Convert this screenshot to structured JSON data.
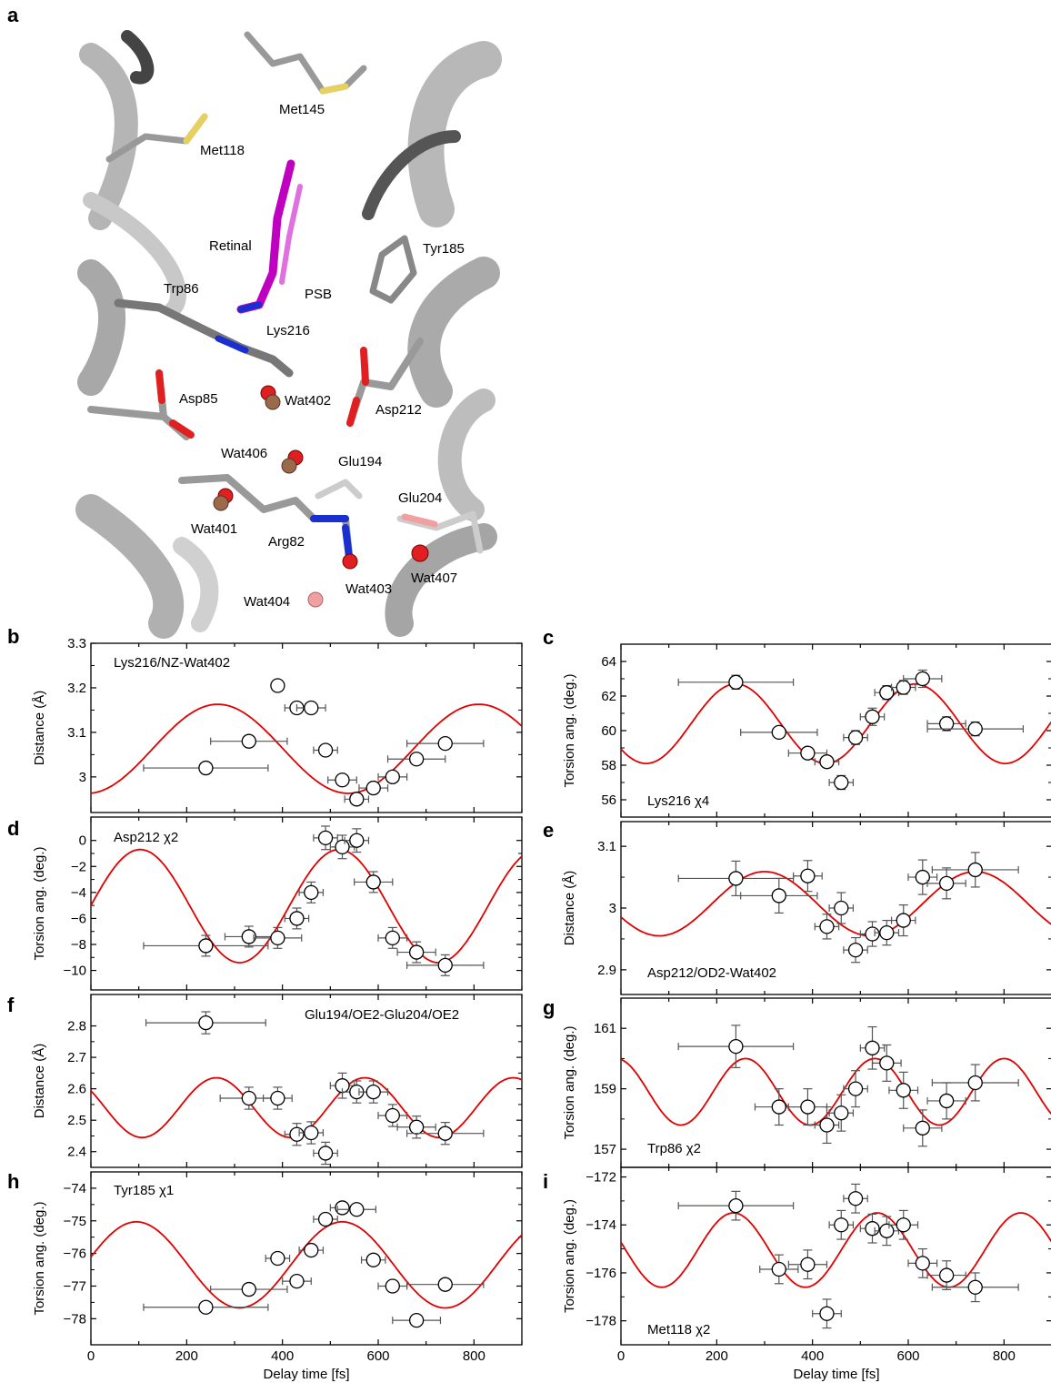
{
  "panel_labels": {
    "a": "a",
    "b": "b",
    "c": "c",
    "d": "d",
    "e": "e",
    "f": "f",
    "g": "g",
    "h": "h",
    "i": "i"
  },
  "structure": {
    "residues": [
      "Met145",
      "Met118",
      "Retinal",
      "Tyr185",
      "Trp86",
      "PSB",
      "Lys216",
      "Asp85",
      "Wat402",
      "Asp212",
      "Wat406",
      "Glu194",
      "Glu204",
      "Wat401",
      "Arg82",
      "Wat403",
      "Wat407",
      "Wat404"
    ]
  },
  "colors": {
    "fit": "#e00000",
    "marker_edge": "#000000",
    "marker_fill": "#ffffff",
    "errorbar": "#555555",
    "ribbon": "#9a9a9a",
    "retinal": "#c000c0",
    "oxygen": "#e02020",
    "nitrogen": "#1a2fd0",
    "sulfur": "#e6d060"
  },
  "chart_data": [
    {
      "id": "b",
      "type": "scatter",
      "annotation": "Lys216/NZ-Wat402",
      "ylabel": "Distance (Å)",
      "xlabel": "",
      "ylim": [
        2.92,
        3.3
      ],
      "xlim": [
        0,
        900
      ],
      "yticks": [
        "3",
        "3.1",
        "3.2",
        "3.3"
      ],
      "xticks": [],
      "points": [
        {
          "x": 240,
          "y": 3.02,
          "xerr": 130,
          "yerr": 0.01
        },
        {
          "x": 330,
          "y": 3.08,
          "xerr": 80,
          "yerr": 0.01
        },
        {
          "x": 390,
          "y": 3.205,
          "xerr": 0,
          "yerr": 0.012
        },
        {
          "x": 430,
          "y": 3.155,
          "xerr": 25,
          "yerr": 0
        },
        {
          "x": 460,
          "y": 3.155,
          "xerr": 30,
          "yerr": 0.01
        },
        {
          "x": 490,
          "y": 3.06,
          "xerr": 25,
          "yerr": 0.01
        },
        {
          "x": 525,
          "y": 2.993,
          "xerr": 30,
          "yerr": 0.01
        },
        {
          "x": 555,
          "y": 2.95,
          "xerr": 25,
          "yerr": 0.012
        },
        {
          "x": 590,
          "y": 2.975,
          "xerr": 30,
          "yerr": 0.012
        },
        {
          "x": 630,
          "y": 3.0,
          "xerr": 30,
          "yerr": 0.012
        },
        {
          "x": 680,
          "y": 3.04,
          "xerr": 60,
          "yerr": 0.012
        },
        {
          "x": 740,
          "y": 3.075,
          "xerr": 80,
          "yerr": 0.01
        }
      ],
      "fit": {
        "mean": 3.063,
        "amp": 0.1,
        "period": 545,
        "phase_x": 265
      }
    },
    {
      "id": "c",
      "type": "scatter",
      "annotation": "Lys216 χ4",
      "ylabel": "Torsion ang. (deg.)",
      "xlabel": "",
      "ylim": [
        55,
        65
      ],
      "xlim": [
        0,
        900
      ],
      "yticks": [
        "56",
        "58",
        "60",
        "62",
        "64"
      ],
      "xticks": [],
      "points": [
        {
          "x": 240,
          "y": 62.8,
          "xerr": 120,
          "yerr": 0.4
        },
        {
          "x": 330,
          "y": 59.9,
          "xerr": 80,
          "yerr": 0
        },
        {
          "x": 390,
          "y": 58.7,
          "xerr": 40,
          "yerr": 0
        },
        {
          "x": 430,
          "y": 58.2,
          "xerr": 25,
          "yerr": 0
        },
        {
          "x": 460,
          "y": 57.0,
          "xerr": 25,
          "yerr": 0.4
        },
        {
          "x": 490,
          "y": 59.6,
          "xerr": 25,
          "yerr": 0.4
        },
        {
          "x": 525,
          "y": 60.8,
          "xerr": 25,
          "yerr": 0.5
        },
        {
          "x": 555,
          "y": 62.2,
          "xerr": 25,
          "yerr": 0.4
        },
        {
          "x": 590,
          "y": 62.5,
          "xerr": 25,
          "yerr": 0.4
        },
        {
          "x": 630,
          "y": 63.0,
          "xerr": 40,
          "yerr": 0.5
        },
        {
          "x": 680,
          "y": 60.4,
          "xerr": 40,
          "yerr": 0.4
        },
        {
          "x": 740,
          "y": 60.1,
          "xerr": 100,
          "yerr": 0.4
        }
      ],
      "fit": {
        "mean": 60.4,
        "amp": 2.3,
        "period": 375,
        "phase_x": 240
      }
    },
    {
      "id": "d",
      "type": "scatter",
      "annotation": "Asp212 χ2",
      "ylabel": "Torsion ang. (deg.)",
      "xlabel": "",
      "ylim": [
        -11.5,
        1.8
      ],
      "xlim": [
        0,
        900
      ],
      "yticks": [
        "0",
        "−2",
        "−4",
        "−6",
        "−8",
        "−10"
      ],
      "xticks": [],
      "points": [
        {
          "x": 240,
          "y": -8.1,
          "xerr": 130,
          "yerr": 0.8
        },
        {
          "x": 330,
          "y": -7.4,
          "xerr": 50,
          "yerr": 0.8
        },
        {
          "x": 390,
          "y": -7.5,
          "xerr": 50,
          "yerr": 0.8
        },
        {
          "x": 430,
          "y": -6.0,
          "xerr": 25,
          "yerr": 0.8
        },
        {
          "x": 460,
          "y": -4.0,
          "xerr": 25,
          "yerr": 0.8
        },
        {
          "x": 490,
          "y": 0.2,
          "xerr": 25,
          "yerr": 0.9
        },
        {
          "x": 525,
          "y": -0.5,
          "xerr": 25,
          "yerr": 0.9
        },
        {
          "x": 555,
          "y": 0.0,
          "xerr": 25,
          "yerr": 0.9
        },
        {
          "x": 590,
          "y": -3.2,
          "xerr": 40,
          "yerr": 0.8
        },
        {
          "x": 630,
          "y": -7.5,
          "xerr": 30,
          "yerr": 0.8
        },
        {
          "x": 680,
          "y": -8.6,
          "xerr": 40,
          "yerr": 0.8
        },
        {
          "x": 740,
          "y": -9.6,
          "xerr": 80,
          "yerr": 0.8
        }
      ],
      "fit": {
        "mean": -5.05,
        "amp": 4.35,
        "period": 415,
        "phase_x": 103
      }
    },
    {
      "id": "e",
      "type": "scatter",
      "annotation": "Asp212/OD2-Wat402",
      "ylabel": "Distance (Å)",
      "xlabel": "",
      "ylim": [
        2.86,
        3.14
      ],
      "xlim": [
        0,
        900
      ],
      "yticks": [
        "2.9",
        "3",
        "3.1"
      ],
      "xticks": [],
      "points": [
        {
          "x": 240,
          "y": 3.048,
          "xerr": 120,
          "yerr": 0.028
        },
        {
          "x": 330,
          "y": 3.02,
          "xerr": 80,
          "yerr": 0.028
        },
        {
          "x": 390,
          "y": 3.052,
          "xerr": 30,
          "yerr": 0.025
        },
        {
          "x": 430,
          "y": 2.97,
          "xerr": 25,
          "yerr": 0.02
        },
        {
          "x": 460,
          "y": 3.0,
          "xerr": 25,
          "yerr": 0.025
        },
        {
          "x": 490,
          "y": 2.932,
          "xerr": 25,
          "yerr": 0.02
        },
        {
          "x": 525,
          "y": 2.958,
          "xerr": 25,
          "yerr": 0.02
        },
        {
          "x": 555,
          "y": 2.96,
          "xerr": 25,
          "yerr": 0.02
        },
        {
          "x": 590,
          "y": 2.98,
          "xerr": 25,
          "yerr": 0.025
        },
        {
          "x": 630,
          "y": 3.05,
          "xerr": 30,
          "yerr": 0.028
        },
        {
          "x": 680,
          "y": 3.04,
          "xerr": 40,
          "yerr": 0.025
        },
        {
          "x": 740,
          "y": 3.062,
          "xerr": 90,
          "yerr": 0.028
        }
      ],
      "fit": {
        "mean": 3.007,
        "amp": 0.052,
        "period": 440,
        "phase_x": 300
      }
    },
    {
      "id": "f",
      "type": "scatter",
      "annotation": "Glu194/OE2-Glu204/OE2",
      "ylabel": "Distance (Å)",
      "xlabel": "",
      "ylim": [
        2.35,
        2.9
      ],
      "xlim": [
        0,
        900
      ],
      "yticks": [
        "2.4",
        "2.5",
        "2.6",
        "2.7",
        "2.8"
      ],
      "xticks": [],
      "points": [
        {
          "x": 240,
          "y": 2.81,
          "xerr": 125,
          "yerr": 0.035
        },
        {
          "x": 330,
          "y": 2.57,
          "xerr": 60,
          "yerr": 0.035
        },
        {
          "x": 390,
          "y": 2.57,
          "xerr": 30,
          "yerr": 0.035
        },
        {
          "x": 430,
          "y": 2.455,
          "xerr": 25,
          "yerr": 0.035
        },
        {
          "x": 460,
          "y": 2.46,
          "xerr": 25,
          "yerr": 0.035
        },
        {
          "x": 490,
          "y": 2.395,
          "xerr": 25,
          "yerr": 0.035
        },
        {
          "x": 525,
          "y": 2.61,
          "xerr": 25,
          "yerr": 0.04
        },
        {
          "x": 555,
          "y": 2.59,
          "xerr": 30,
          "yerr": 0.035
        },
        {
          "x": 590,
          "y": 2.59,
          "xerr": 30,
          "yerr": 0.035
        },
        {
          "x": 630,
          "y": 2.515,
          "xerr": 30,
          "yerr": 0.035
        },
        {
          "x": 680,
          "y": 2.478,
          "xerr": 40,
          "yerr": 0.035
        },
        {
          "x": 740,
          "y": 2.458,
          "xerr": 80,
          "yerr": 0.035
        }
      ],
      "fit": {
        "mean": 2.54,
        "amp": 0.095,
        "period": 310,
        "phase_x": 262
      }
    },
    {
      "id": "g",
      "type": "scatter",
      "annotation": "Trp86 χ2",
      "ylabel": "Torsion ang. (deg.)",
      "xlabel": "",
      "ylim": [
        156.4,
        162.0
      ],
      "xlim": [
        0,
        900
      ],
      "yticks": [
        "157",
        "159",
        "161"
      ],
      "xticks": [],
      "points": [
        {
          "x": 240,
          "y": 160.4,
          "xerr": 120,
          "yerr": 0.7
        },
        {
          "x": 330,
          "y": 158.4,
          "xerr": 50,
          "yerr": 0.6
        },
        {
          "x": 390,
          "y": 158.4,
          "xerr": 40,
          "yerr": 0.6
        },
        {
          "x": 430,
          "y": 157.8,
          "xerr": 25,
          "yerr": 0.6
        },
        {
          "x": 460,
          "y": 158.2,
          "xerr": 25,
          "yerr": 0.6
        },
        {
          "x": 490,
          "y": 159.0,
          "xerr": 25,
          "yerr": 0.6
        },
        {
          "x": 525,
          "y": 160.35,
          "xerr": 25,
          "yerr": 0.7
        },
        {
          "x": 555,
          "y": 159.85,
          "xerr": 30,
          "yerr": 0.6
        },
        {
          "x": 590,
          "y": 158.95,
          "xerr": 30,
          "yerr": 0.6
        },
        {
          "x": 630,
          "y": 157.7,
          "xerr": 40,
          "yerr": 0.6
        },
        {
          "x": 680,
          "y": 158.6,
          "xerr": 40,
          "yerr": 0.6
        },
        {
          "x": 740,
          "y": 159.2,
          "xerr": 90,
          "yerr": 0.6
        }
      ],
      "fit": {
        "mean": 158.9,
        "amp": 1.1,
        "period": 270,
        "phase_x": 260
      }
    },
    {
      "id": "h",
      "type": "scatter",
      "annotation": "Tyr185 χ1",
      "ylabel": "Torsion ang. (deg.)",
      "xlabel": "Delay time [fs]",
      "ylim": [
        -78.8,
        -73.5
      ],
      "xlim": [
        0,
        900
      ],
      "yticks": [
        "−74",
        "−75",
        "−76",
        "−77",
        "−78"
      ],
      "xticks": [
        "0",
        "200",
        "400",
        "600",
        "800"
      ],
      "points": [
        {
          "x": 240,
          "y": -77.65,
          "xerr": 130,
          "yerr": 0.15
        },
        {
          "x": 330,
          "y": -77.1,
          "xerr": 80,
          "yerr": 0.15
        },
        {
          "x": 390,
          "y": -76.15,
          "xerr": 25,
          "yerr": 0.15
        },
        {
          "x": 430,
          "y": -76.85,
          "xerr": 30,
          "yerr": 0.15
        },
        {
          "x": 460,
          "y": -75.9,
          "xerr": 25,
          "yerr": 0.15
        },
        {
          "x": 490,
          "y": -74.95,
          "xerr": 25,
          "yerr": 0.15
        },
        {
          "x": 525,
          "y": -74.6,
          "xerr": 25,
          "yerr": 0.15
        },
        {
          "x": 555,
          "y": -74.65,
          "xerr": 40,
          "yerr": 0.1
        },
        {
          "x": 590,
          "y": -76.2,
          "xerr": 25,
          "yerr": 0.15
        },
        {
          "x": 630,
          "y": -77.0,
          "xerr": 30,
          "yerr": 0.15
        },
        {
          "x": 680,
          "y": -78.05,
          "xerr": 50,
          "yerr": 0.1
        },
        {
          "x": 740,
          "y": -76.95,
          "xerr": 80,
          "yerr": 0.15
        }
      ],
      "fit": {
        "mean": -76.35,
        "amp": 1.32,
        "period": 430,
        "phase_x": 95
      }
    },
    {
      "id": "i",
      "type": "scatter",
      "annotation": "Met118 χ2",
      "ylabel": "Torsion ang. (deg.)",
      "xlabel": "Delay time [fs]",
      "ylim": [
        -179.0,
        -171.6
      ],
      "xlim": [
        0,
        900
      ],
      "yticks": [
        "−172",
        "−174",
        "−176",
        "−178"
      ],
      "xticks": [
        "0",
        "200",
        "400",
        "600",
        "800"
      ],
      "points": [
        {
          "x": 240,
          "y": -173.2,
          "xerr": 120,
          "yerr": 0.6
        },
        {
          "x": 330,
          "y": -175.85,
          "xerr": 40,
          "yerr": 0.6
        },
        {
          "x": 390,
          "y": -175.65,
          "xerr": 40,
          "yerr": 0.6
        },
        {
          "x": 430,
          "y": -177.7,
          "xerr": 30,
          "yerr": 0.6
        },
        {
          "x": 460,
          "y": -174.0,
          "xerr": 25,
          "yerr": 0.6
        },
        {
          "x": 490,
          "y": -172.9,
          "xerr": 25,
          "yerr": 0.6
        },
        {
          "x": 525,
          "y": -174.15,
          "xerr": 25,
          "yerr": 0.6
        },
        {
          "x": 555,
          "y": -174.25,
          "xerr": 25,
          "yerr": 0.6
        },
        {
          "x": 590,
          "y": -174.0,
          "xerr": 30,
          "yerr": 0.6
        },
        {
          "x": 630,
          "y": -175.6,
          "xerr": 30,
          "yerr": 0.6
        },
        {
          "x": 680,
          "y": -176.1,
          "xerr": 40,
          "yerr": 0.6
        },
        {
          "x": 740,
          "y": -176.6,
          "xerr": 90,
          "yerr": 0.6
        }
      ],
      "fit": {
        "mean": -175.05,
        "amp": 1.55,
        "period": 300,
        "phase_x": 235
      }
    }
  ]
}
